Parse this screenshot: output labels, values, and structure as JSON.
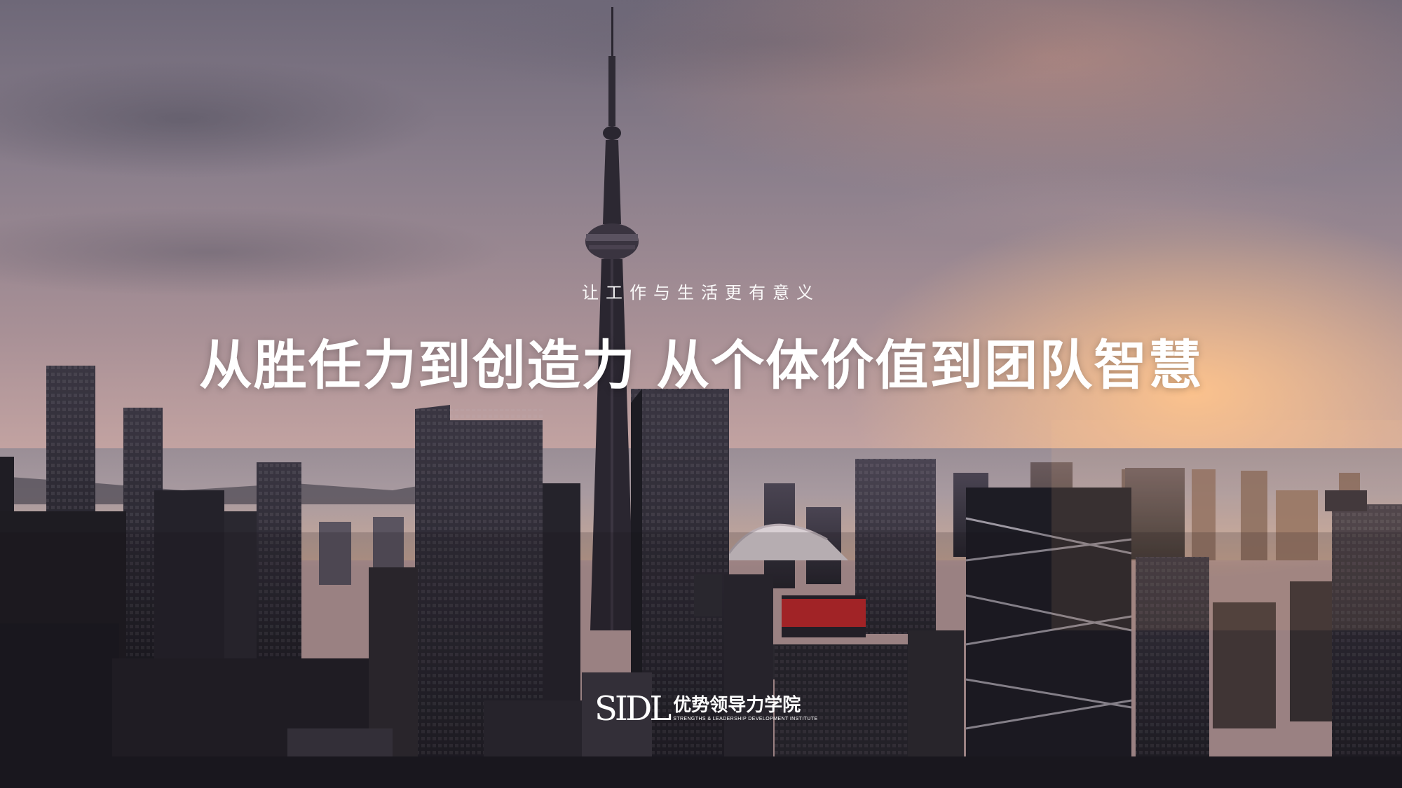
{
  "slide": {
    "tagline": "让工作与生活更有意义",
    "headline": "从胜任力到创造力  从个体价值到团队智慧"
  },
  "logo": {
    "mark": "SIDL",
    "name_cn": "优势领导力学院",
    "name_en": "STRENGTHS & LEADERSHIP DEVELOPMENT INSTITUTE"
  },
  "background": {
    "subject": "city skyline at sunset with CN Tower",
    "colors": {
      "sky_top": "#6e6878",
      "sky_glow": "#ffc48c",
      "buildings": "#2b2a33",
      "accent_red": "#c0282a"
    }
  }
}
